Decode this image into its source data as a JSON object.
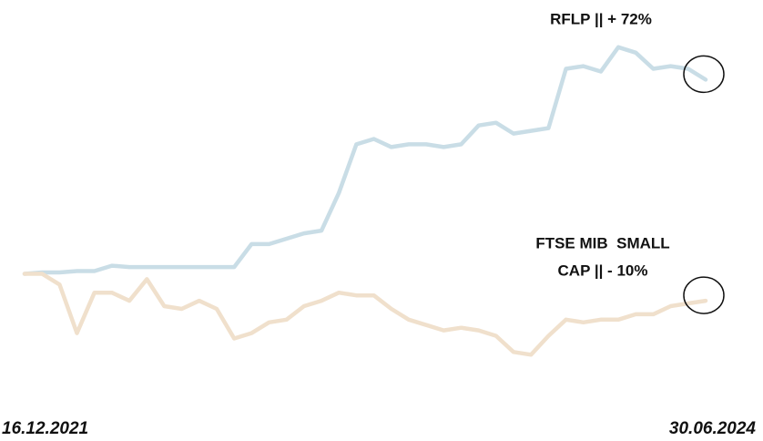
{
  "chart_data": {
    "type": "line",
    "categories": [
      "16.12.2021",
      null,
      null,
      null,
      null,
      null,
      null,
      null,
      null,
      null,
      null,
      null,
      null,
      null,
      null,
      null,
      null,
      null,
      null,
      null,
      null,
      null,
      null,
      null,
      null,
      null,
      null,
      null,
      null,
      null,
      null,
      null,
      null,
      null,
      null,
      null,
      null,
      null,
      null,
      "30.06.2024"
    ],
    "series": [
      {
        "name": "RFLP",
        "color": "#c9dde6",
        "values": [
          0,
          0.5,
          0.5,
          1,
          1,
          3,
          2.5,
          2.5,
          2.5,
          2.5,
          2.5,
          2.5,
          2.5,
          11,
          11,
          13,
          15,
          16,
          30,
          48,
          50,
          47,
          48,
          48,
          47,
          48,
          55,
          56,
          52,
          53,
          54,
          76,
          77,
          75,
          84,
          82,
          76,
          77,
          76,
          72
        ]
      },
      {
        "name": "FTSE MIB SMALL CAP",
        "color": "#f0e0cc",
        "values": [
          0,
          0,
          -4,
          -22,
          -7,
          -7,
          -10,
          -2,
          -12,
          -13,
          -10,
          -13,
          -24,
          -22,
          -18,
          -17,
          -12,
          -10,
          -7,
          -8,
          -8,
          -13,
          -17,
          -19,
          -21,
          -20,
          -21,
          -23,
          -29,
          -30,
          -23,
          -17,
          -18,
          -17,
          -17,
          -15,
          -15,
          -12,
          -11,
          -10
        ]
      }
    ],
    "annotations": [
      {
        "lines": [
          "RFLP || + 72%"
        ]
      },
      {
        "lines": [
          "FTSE MIB  SMALL",
          "CAP || - 10%"
        ]
      }
    ],
    "ylim": [
      -37,
      88
    ]
  }
}
